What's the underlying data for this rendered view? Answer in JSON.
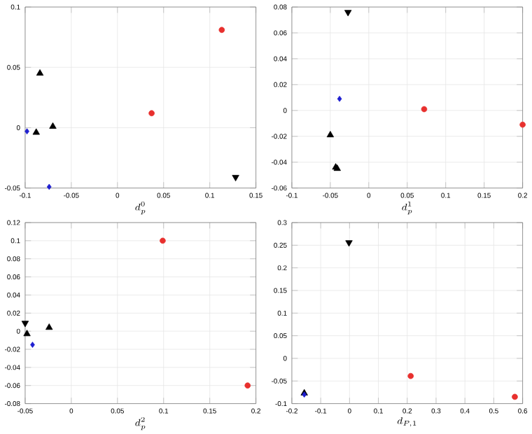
{
  "chart_data": [
    {
      "type": "scatter",
      "xlabel": "d_p^0",
      "xlim": [
        -0.1,
        0.15
      ],
      "xticks": [
        -0.1,
        -0.05,
        0,
        0.05,
        0.1,
        0.15
      ],
      "ylim": [
        -0.05,
        0.1
      ],
      "yticks": [
        -0.05,
        0,
        0.05,
        0.1
      ],
      "grid": true,
      "series": [
        {
          "marker": "circle",
          "color": "#e8302e",
          "x": [
            0.113,
            0.037
          ],
          "values": [
            0.081,
            0.012
          ]
        },
        {
          "marker": "triangle",
          "color": "#000000",
          "x": [
            -0.084,
            -0.088,
            -0.07
          ],
          "values": [
            0.045,
            -0.004,
            0.001
          ]
        },
        {
          "marker": "triangle-down",
          "color": "#000000",
          "x": [
            0.128
          ],
          "values": [
            -0.041
          ]
        },
        {
          "marker": "diamond",
          "color": "#1f1fd0",
          "x": [
            -0.098,
            -0.074
          ],
          "values": [
            -0.003,
            -0.049
          ]
        }
      ]
    },
    {
      "type": "scatter",
      "xlabel": "d_p^1",
      "xlim": [
        -0.1,
        0.2
      ],
      "xticks": [
        -0.1,
        -0.05,
        0,
        0.05,
        0.1,
        0.15,
        0.2
      ],
      "ylim": [
        -0.06,
        0.08
      ],
      "yticks": [
        -0.06,
        -0.04,
        -0.02,
        0,
        0.02,
        0.04,
        0.06,
        0.08
      ],
      "grid": true,
      "series": [
        {
          "marker": "circle",
          "color": "#e8302e",
          "x": [
            0.072,
            0.2
          ],
          "values": [
            0.001,
            -0.011
          ]
        },
        {
          "marker": "triangle",
          "color": "#000000",
          "x": [
            -0.05,
            -0.043,
            -0.041
          ],
          "values": [
            -0.019,
            -0.044,
            -0.045
          ]
        },
        {
          "marker": "triangle-down",
          "color": "#000000",
          "x": [
            -0.027
          ],
          "values": [
            0.076
          ]
        },
        {
          "marker": "diamond",
          "color": "#1f1fd0",
          "x": [
            -0.038
          ],
          "values": [
            0.009
          ]
        }
      ]
    },
    {
      "type": "scatter",
      "xlabel": "d_p^2",
      "xlim": [
        -0.05,
        0.2
      ],
      "xticks": [
        -0.05,
        0,
        0.05,
        0.1,
        0.15,
        0.2
      ],
      "ylim": [
        -0.08,
        0.12
      ],
      "yticks": [
        -0.08,
        -0.06,
        -0.04,
        -0.02,
        0,
        0.02,
        0.04,
        0.06,
        0.08,
        0.1,
        0.12
      ],
      "grid": true,
      "series": [
        {
          "marker": "circle",
          "color": "#e8302e",
          "x": [
            0.099,
            0.191
          ],
          "values": [
            0.1,
            -0.06
          ]
        },
        {
          "marker": "triangle",
          "color": "#000000",
          "x": [
            -0.024,
            -0.048
          ],
          "values": [
            0.004,
            -0.003
          ]
        },
        {
          "marker": "triangle-down",
          "color": "#000000",
          "x": [
            -0.05
          ],
          "values": [
            0.009
          ]
        },
        {
          "marker": "diamond",
          "color": "#1f1fd0",
          "x": [
            -0.042
          ],
          "values": [
            -0.015
          ]
        }
      ]
    },
    {
      "type": "scatter",
      "xlabel": "d_{P,1}",
      "xlim": [
        -0.2,
        0.6
      ],
      "xticks": [
        -0.2,
        -0.1,
        0,
        0.1,
        0.2,
        0.3,
        0.4,
        0.5,
        0.6
      ],
      "ylim": [
        -0.1,
        0.3
      ],
      "yticks": [
        -0.1,
        -0.05,
        0,
        0.05,
        0.1,
        0.15,
        0.2,
        0.25,
        0.3
      ],
      "grid": true,
      "series": [
        {
          "marker": "circle",
          "color": "#e8302e",
          "x": [
            0.212,
            0.573
          ],
          "values": [
            -0.039,
            -0.085
          ]
        },
        {
          "marker": "triangle",
          "color": "#000000",
          "x": [
            -0.157
          ],
          "values": [
            -0.077
          ]
        },
        {
          "marker": "triangle-down",
          "color": "#000000",
          "x": [
            -0.002
          ],
          "values": [
            0.256
          ]
        },
        {
          "marker": "diamond",
          "color": "#1f1fd0",
          "x": [
            -0.157
          ],
          "values": [
            -0.08
          ]
        }
      ]
    }
  ]
}
